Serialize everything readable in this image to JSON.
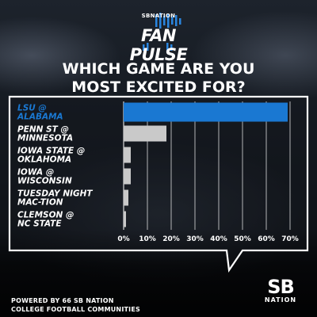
{
  "header": {
    "brand_small": "SBNATION",
    "brand_title": "FAN PULSE"
  },
  "question": {
    "line1": "WHICH GAME ARE YOU",
    "line2": "MOST EXCITED FOR?"
  },
  "chart_data": {
    "type": "bar",
    "orientation": "horizontal",
    "title": "WHICH GAME ARE YOU MOST EXCITED FOR?",
    "categories": [
      [
        "LSU @",
        "ALABAMA"
      ],
      [
        "PENN ST @",
        "MINNESOTA"
      ],
      [
        "IOWA STATE @",
        "OKLAHOMA"
      ],
      [
        "IOWA @",
        "WISCONSIN"
      ],
      [
        "TUESDAY NIGHT",
        "MAC-TION"
      ],
      [
        "CLEMSON @",
        "NC STATE"
      ]
    ],
    "values": [
      69,
      18,
      3,
      3,
      2,
      1
    ],
    "unit": "%",
    "xlim": [
      0,
      70
    ],
    "xticks": [
      "0%",
      "10%",
      "20%",
      "30%",
      "40%",
      "50%",
      "60%",
      "70%"
    ],
    "grid": true,
    "colors": {
      "highlight": "#1a78d2",
      "default": "#c9c9c9",
      "highlight_label": "#1a78d2",
      "label": "#ffffff"
    },
    "highlight_index": 0
  },
  "footer": {
    "line1": "POWERED BY 66 SB NATION",
    "line2": "COLLEGE FOOTBALL COMMUNITIES"
  },
  "logo": {
    "big": "SB",
    "small": "NATION"
  }
}
